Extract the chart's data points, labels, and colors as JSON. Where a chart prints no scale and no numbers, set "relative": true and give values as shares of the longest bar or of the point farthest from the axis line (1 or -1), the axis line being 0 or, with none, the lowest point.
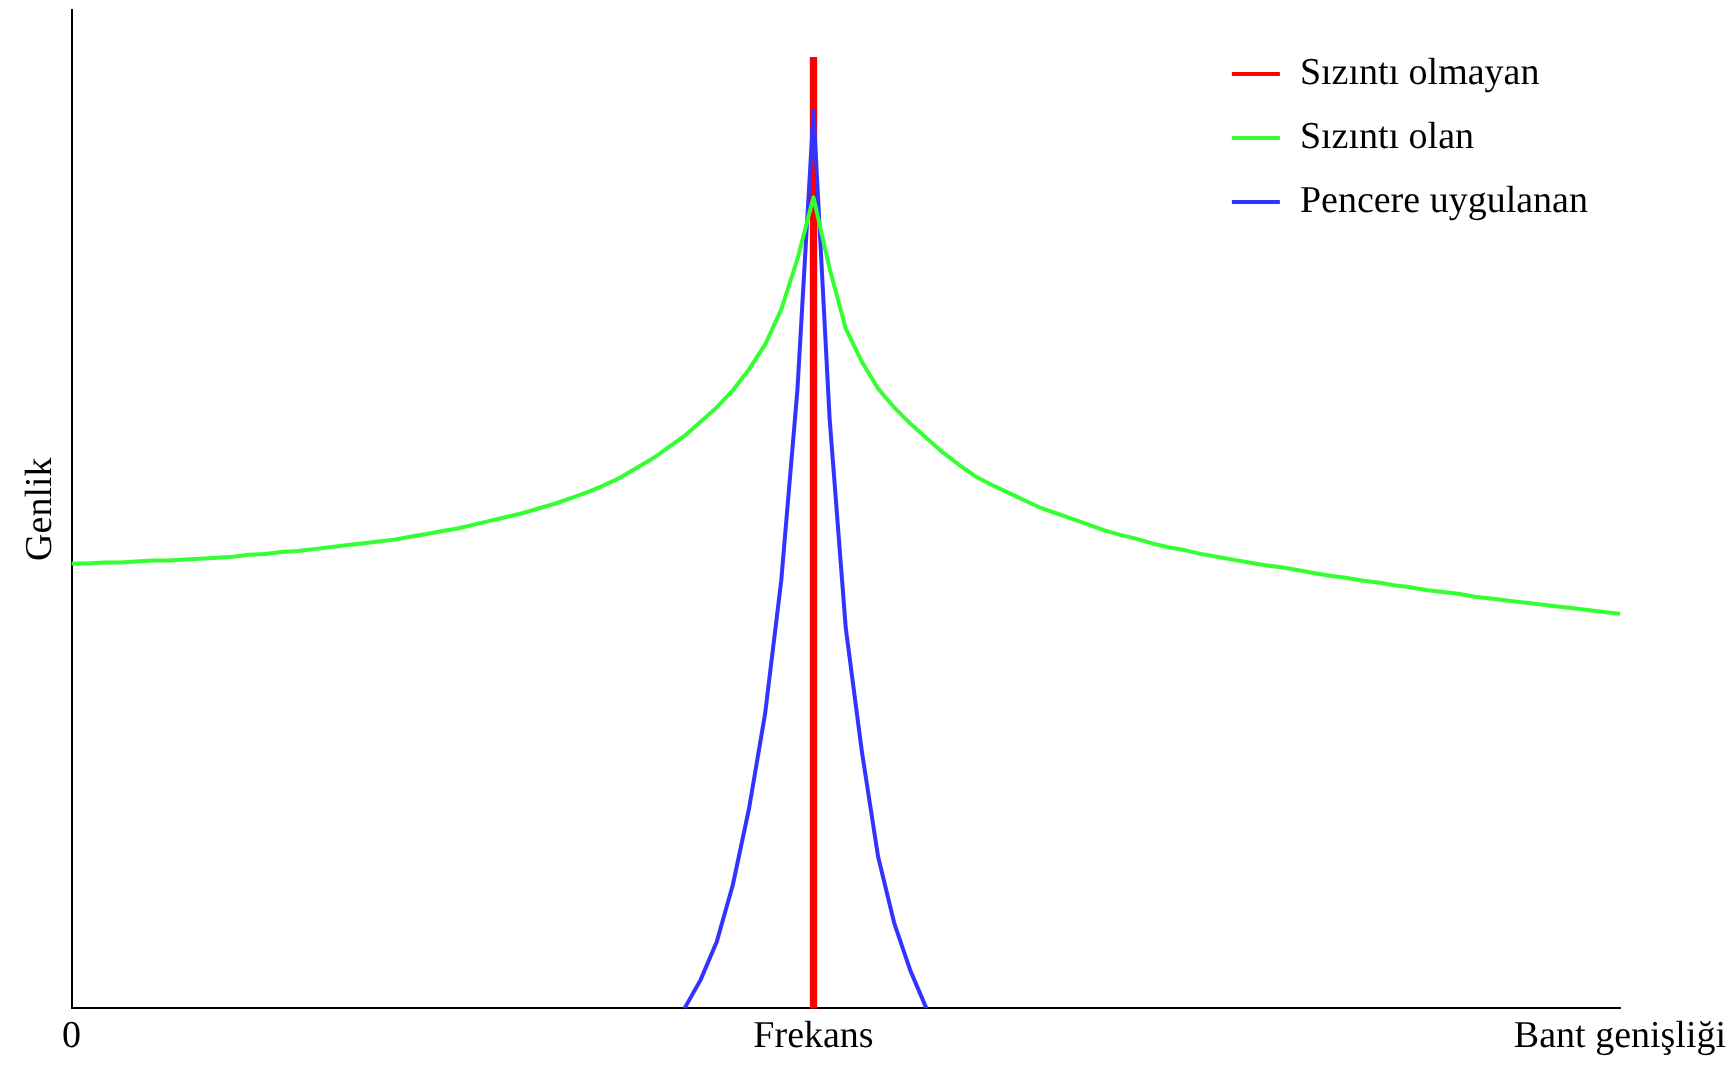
{
  "chart_data": {
    "type": "line",
    "ylabel": "Genlik",
    "relative": true,
    "grid": false,
    "legend": "top right",
    "marker": "none",
    "line_style": "solid",
    "categories": [
      "0",
      null,
      null,
      null,
      null,
      null,
      null,
      null,
      null,
      null,
      null,
      null,
      null,
      null,
      null,
      null,
      null,
      null,
      null,
      null,
      null,
      null,
      null,
      null,
      null,
      null,
      null,
      null,
      null,
      null,
      null,
      null,
      null,
      null,
      null,
      null,
      null,
      null,
      null,
      null,
      null,
      null,
      null,
      null,
      null,
      null,
      "Frekans",
      null,
      null,
      null,
      null,
      null,
      null,
      null,
      null,
      null,
      null,
      null,
      null,
      null,
      null,
      null,
      null,
      null,
      null,
      null,
      null,
      null,
      null,
      null,
      null,
      null,
      null,
      null,
      null,
      null,
      null,
      null,
      null,
      null,
      null,
      null,
      null,
      null,
      null,
      null,
      null,
      null,
      null,
      null,
      null,
      null,
      null,
      null,
      null,
      null,
      "Bant genişliği"
    ],
    "series": [
      {
        "name": "Sızıntı olmayan",
        "color": "#ff0000",
        "type": "bar",
        "values": [
          null,
          null,
          null,
          null,
          null,
          null,
          null,
          null,
          null,
          null,
          null,
          null,
          null,
          null,
          null,
          null,
          null,
          null,
          null,
          null,
          null,
          null,
          null,
          null,
          null,
          null,
          null,
          null,
          null,
          null,
          null,
          null,
          null,
          null,
          null,
          null,
          null,
          null,
          null,
          null,
          null,
          null,
          null,
          null,
          null,
          null,
          1,
          null,
          null,
          null,
          null,
          null,
          null,
          null,
          null,
          null,
          null,
          null,
          null,
          null,
          null,
          null,
          null,
          null,
          null,
          null,
          null,
          null,
          null,
          null,
          null,
          null,
          null,
          null,
          null,
          null,
          null,
          null,
          null,
          null,
          null,
          null,
          null,
          null,
          null,
          null,
          null,
          null,
          null,
          null,
          null,
          null,
          null,
          null,
          null,
          null,
          null
        ]
      },
      {
        "name": "Sızıntı olan",
        "color": "#33ff33",
        "values": [
          0.468,
          0.468,
          0.469,
          0.469,
          0.47,
          0.471,
          0.471,
          0.472,
          0.473,
          0.474,
          0.475,
          0.477,
          0.478,
          0.48,
          0.481,
          0.483,
          0.485,
          0.487,
          0.489,
          0.491,
          0.493,
          0.496,
          0.499,
          0.502,
          0.505,
          0.509,
          0.513,
          0.517,
          0.521,
          0.526,
          0.531,
          0.537,
          0.543,
          0.55,
          0.558,
          0.568,
          0.578,
          0.59,
          0.602,
          0.617,
          0.632,
          0.65,
          0.672,
          0.698,
          0.735,
          0.788,
          0.853,
          0.778,
          0.715,
          0.68,
          0.652,
          0.632,
          0.615,
          0.6,
          0.585,
          0.572,
          0.56,
          0.551,
          0.543,
          0.535,
          0.527,
          0.521,
          0.515,
          0.509,
          0.503,
          0.498,
          0.494,
          0.489,
          0.485,
          0.482,
          0.478,
          0.475,
          0.472,
          0.469,
          0.466,
          0.464,
          0.461,
          0.458,
          0.455,
          0.453,
          0.45,
          0.448,
          0.445,
          0.443,
          0.44,
          0.438,
          0.436,
          0.433,
          0.431,
          0.429,
          0.427,
          0.425,
          0.423,
          0.421,
          0.419,
          0.417,
          0.415
        ]
      },
      {
        "name": "Pencere uygulanan",
        "color": "#3333ff",
        "values": [
          null,
          null,
          null,
          null,
          null,
          null,
          null,
          null,
          null,
          null,
          null,
          null,
          null,
          null,
          null,
          null,
          null,
          null,
          null,
          null,
          null,
          null,
          null,
          null,
          null,
          null,
          null,
          null,
          null,
          null,
          null,
          null,
          null,
          null,
          null,
          null,
          null,
          null,
          0,
          0.03,
          0.07,
          0.13,
          0.21,
          0.31,
          0.45,
          0.65,
          0.944,
          0.62,
          0.4,
          0.27,
          0.16,
          0.09,
          0.04,
          0,
          null,
          null,
          null,
          null,
          null,
          null,
          null,
          null,
          null,
          null,
          null,
          null,
          null,
          null,
          null,
          null,
          null,
          null,
          null,
          null,
          null,
          null,
          null,
          null,
          null,
          null,
          null,
          null,
          null,
          null,
          null,
          null,
          null,
          null,
          null,
          null,
          null,
          null,
          null,
          null,
          null,
          null,
          null
        ]
      }
    ]
  }
}
